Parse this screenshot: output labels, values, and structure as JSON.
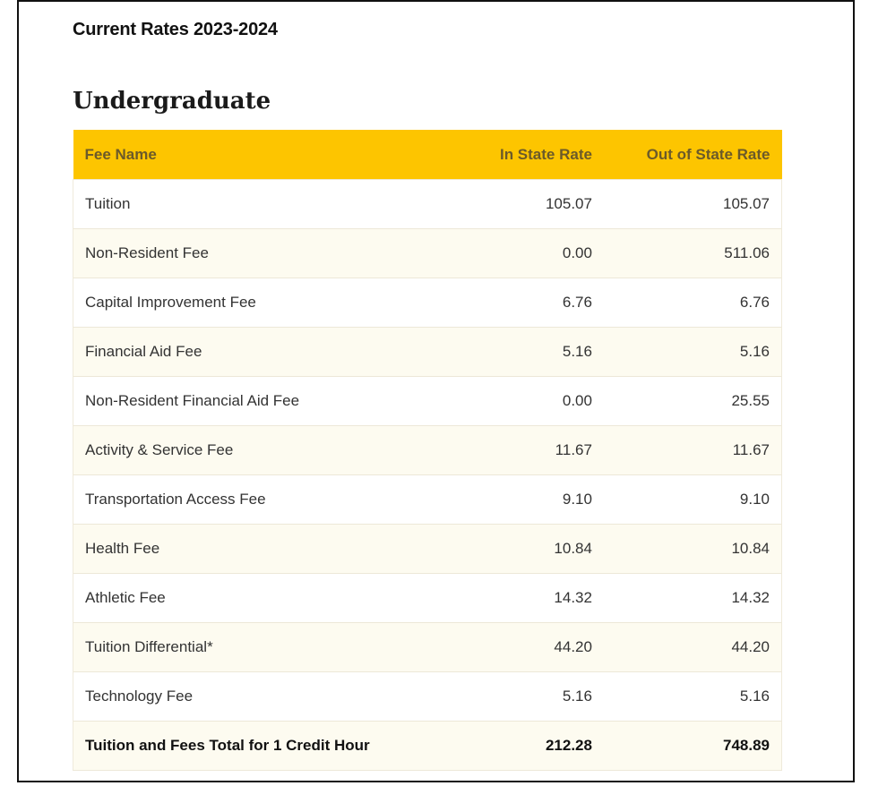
{
  "page_title": "Current Rates 2023-2024",
  "section_title": "Undergraduate",
  "table": {
    "headers": {
      "fee_name": "Fee Name",
      "in_state": "In State Rate",
      "out_of_state": "Out of State Rate"
    },
    "rows": [
      {
        "name": "Tuition",
        "in_state": "105.07",
        "out_of_state": "105.07"
      },
      {
        "name": "Non-Resident Fee",
        "in_state": "0.00",
        "out_of_state": "511.06"
      },
      {
        "name": "Capital Improvement Fee",
        "in_state": "6.76",
        "out_of_state": "6.76"
      },
      {
        "name": "Financial Aid Fee",
        "in_state": "5.16",
        "out_of_state": "5.16"
      },
      {
        "name": "Non-Resident Financial Aid Fee",
        "in_state": "0.00",
        "out_of_state": "25.55"
      },
      {
        "name": "Activity & Service Fee",
        "in_state": "11.67",
        "out_of_state": "11.67"
      },
      {
        "name": "Transportation Access Fee",
        "in_state": "9.10",
        "out_of_state": "9.10"
      },
      {
        "name": "Health Fee",
        "in_state": "10.84",
        "out_of_state": "10.84"
      },
      {
        "name": "Athletic Fee",
        "in_state": "14.32",
        "out_of_state": "14.32"
      },
      {
        "name": "Tuition Differential*",
        "in_state": "44.20",
        "out_of_state": "44.20"
      },
      {
        "name": "Technology Fee",
        "in_state": "5.16",
        "out_of_state": "5.16"
      }
    ],
    "total": {
      "name": "Tuition and Fees Total for 1 Credit Hour",
      "in_state": "212.28",
      "out_of_state": "748.89"
    }
  },
  "colors": {
    "header_background": "#fdc500",
    "header_text": "#6b5a2a",
    "stripe_background": "#fdfbf0"
  }
}
